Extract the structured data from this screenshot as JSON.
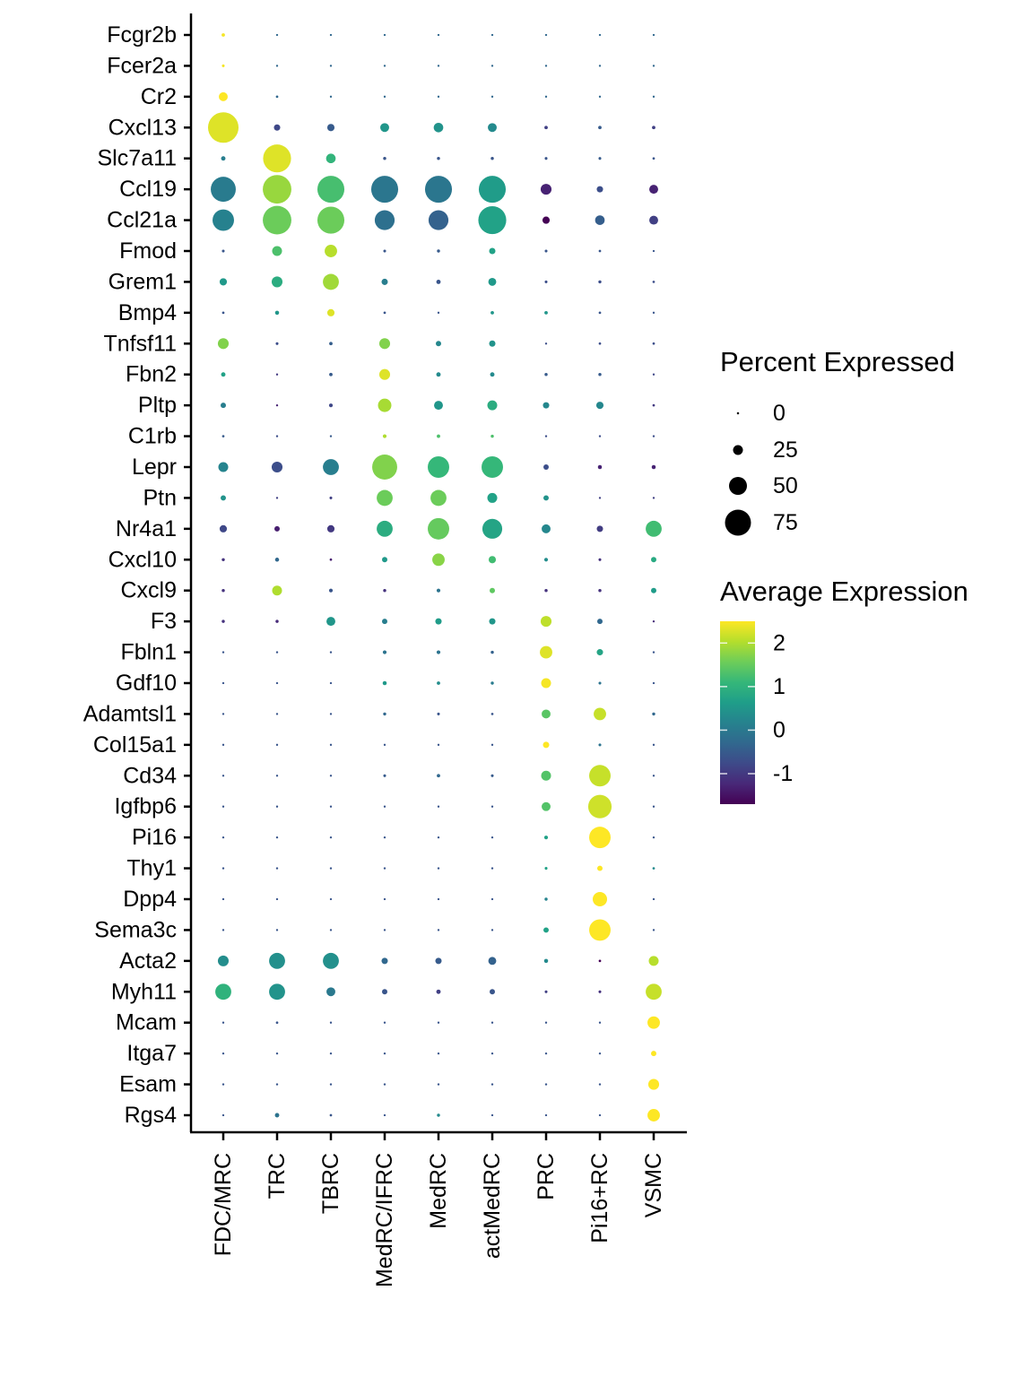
{
  "chart_data": {
    "type": "dotplot",
    "title": "",
    "xlabel": "",
    "ylabel": "",
    "categories": [
      "FDC/MRC",
      "TRC",
      "TBRC",
      "MedRC/IFRC",
      "MedRC",
      "actMedRC",
      "PRC",
      "Pi16+RC",
      "VSMC"
    ],
    "genes": [
      "Fcgr2b",
      "Fcer2a",
      "Cr2",
      "Cxcl13",
      "Slc7a11",
      "Ccl19",
      "Ccl21a",
      "Fmod",
      "Grem1",
      "Bmp4",
      "Tnfsf11",
      "Fbn2",
      "Pltp",
      "C1rb",
      "Lepr",
      "Ptn",
      "Nr4a1",
      "Cxcl10",
      "Cxcl9",
      "F3",
      "Fbln1",
      "Gdf10",
      "Adamtsl1",
      "Col15a1",
      "Cd34",
      "Igfbp6",
      "Pi16",
      "Thy1",
      "Dpp4",
      "Sema3c",
      "Acta2",
      "Myh11",
      "Mcam",
      "Itga7",
      "Esam",
      "Rgs4"
    ],
    "size_legend": {
      "title": "Percent Expressed",
      "breaks": [
        0,
        25,
        50,
        75
      ],
      "labels": [
        "0",
        "25",
        "50",
        "75"
      ]
    },
    "color_legend": {
      "title": "Average Expression",
      "breaks": [
        2,
        1,
        0,
        -1
      ],
      "labels": [
        "2",
        "1",
        "0",
        "-1"
      ],
      "range": [
        -1.7,
        2.5
      ],
      "palette": [
        "#440154",
        "#482878",
        "#3E4A89",
        "#31688E",
        "#26828E",
        "#1F9E89",
        "#35B779",
        "#6DCD59",
        "#B4DE2C",
        "#FDE725"
      ]
    },
    "series": [
      {
        "gene": "Fcgr2b",
        "pct": [
          5,
          1,
          1,
          1,
          1,
          1,
          1,
          1,
          1
        ],
        "avg_exp": [
          2.45,
          -0.3,
          -0.3,
          -0.3,
          -0.3,
          -0.3,
          -0.3,
          -0.3,
          -0.3
        ]
      },
      {
        "gene": "Fcer2a",
        "pct": [
          3,
          1,
          1,
          1,
          1,
          1,
          1,
          1,
          1
        ],
        "avg_exp": [
          2.45,
          -0.3,
          -0.3,
          -0.3,
          -0.3,
          -0.3,
          -0.3,
          -0.3,
          -0.3
        ]
      },
      {
        "gene": "Cr2",
        "pct": [
          22,
          2,
          1,
          1,
          1,
          1,
          1,
          1,
          1
        ],
        "avg_exp": [
          2.5,
          -0.3,
          -0.3,
          -0.3,
          -0.3,
          -0.3,
          -0.3,
          -0.3,
          -0.3
        ]
      },
      {
        "gene": "Cxcl13",
        "pct": [
          89,
          14,
          17,
          22,
          24,
          22,
          5,
          5,
          5
        ],
        "avg_exp": [
          2.3,
          -0.8,
          -0.5,
          0.5,
          0.45,
          0.3,
          -0.9,
          -0.5,
          -0.9
        ]
      },
      {
        "gene": "Slc7a11",
        "pct": [
          8,
          81,
          24,
          4,
          4,
          4,
          3,
          3,
          2
        ],
        "avg_exp": [
          0.1,
          2.3,
          1.05,
          -0.6,
          -0.6,
          -0.6,
          -0.6,
          -0.5,
          -0.6
        ]
      },
      {
        "gene": "Ccl19",
        "pct": [
          72,
          83,
          78,
          78,
          78,
          78,
          28,
          14,
          22
        ],
        "avg_exp": [
          0.05,
          1.85,
          1.25,
          -0.05,
          -0.05,
          0.6,
          -1.3,
          -0.7,
          -1.3
        ]
      },
      {
        "gene": "Ccl21a",
        "pct": [
          61,
          83,
          78,
          56,
          56,
          81,
          17,
          24,
          22
        ],
        "avg_exp": [
          0.15,
          1.55,
          1.55,
          -0.15,
          -0.4,
          0.7,
          -1.7,
          -0.45,
          -0.9
        ]
      },
      {
        "gene": "Fmod",
        "pct": [
          3,
          25,
          33,
          3,
          4,
          14,
          3,
          2,
          1
        ],
        "avg_exp": [
          -0.6,
          1.3,
          2.05,
          -0.6,
          -0.5,
          0.7,
          -0.6,
          -0.6,
          -0.6
        ]
      },
      {
        "gene": "Grem1",
        "pct": [
          17,
          28,
          44,
          14,
          8,
          19,
          3,
          4,
          2
        ],
        "avg_exp": [
          0.55,
          0.9,
          1.9,
          0.1,
          -0.6,
          0.55,
          -0.7,
          -0.7,
          -0.7
        ]
      },
      {
        "gene": "Bmp4",
        "pct": [
          2,
          7,
          17,
          2,
          1,
          5,
          5,
          2,
          1
        ],
        "avg_exp": [
          -0.6,
          0.5,
          2.3,
          -0.6,
          -0.6,
          0.5,
          0.5,
          -0.6,
          -0.6
        ]
      },
      {
        "gene": "Tnfsf11",
        "pct": [
          28,
          3,
          5,
          28,
          11,
          14,
          1,
          2,
          2
        ],
        "avg_exp": [
          1.7,
          -0.7,
          -0.45,
          1.7,
          0.25,
          0.45,
          -0.7,
          -0.7,
          -0.7
        ]
      },
      {
        "gene": "Fbn2",
        "pct": [
          8,
          1,
          5,
          28,
          8,
          8,
          4,
          4,
          1
        ],
        "avg_exp": [
          0.7,
          -1.0,
          -0.5,
          2.3,
          0.3,
          0.3,
          -0.5,
          -0.5,
          -0.8
        ]
      },
      {
        "gene": "Pltp",
        "pct": [
          11,
          1,
          6,
          36,
          22,
          25,
          14,
          17,
          2
        ],
        "avg_exp": [
          0.1,
          -1.3,
          -0.8,
          1.95,
          0.5,
          0.9,
          0.25,
          0.25,
          -1.0
        ]
      },
      {
        "gene": "C1rb",
        "pct": [
          2,
          1,
          1,
          6,
          5,
          4,
          1,
          1,
          1
        ],
        "avg_exp": [
          -0.5,
          -0.7,
          -0.5,
          2.0,
          1.3,
          1.3,
          -0.7,
          -0.7,
          -0.7
        ]
      },
      {
        "gene": "Lepr",
        "pct": [
          25,
          28,
          44,
          72,
          61,
          61,
          11,
          7,
          7
        ],
        "avg_exp": [
          0.2,
          -0.7,
          0.1,
          1.7,
          1.1,
          1.1,
          -0.7,
          -1.3,
          -1.3
        ]
      },
      {
        "gene": "Ptn",
        "pct": [
          11,
          1,
          3,
          44,
          44,
          25,
          11,
          1,
          1
        ],
        "avg_exp": [
          0.45,
          -0.9,
          -0.9,
          1.55,
          1.55,
          0.7,
          0.45,
          -0.9,
          -0.9
        ]
      },
      {
        "gene": "Nr4a1",
        "pct": [
          17,
          11,
          17,
          44,
          61,
          56,
          22,
          14,
          44
        ],
        "avg_exp": [
          -0.8,
          -1.35,
          -1.0,
          0.9,
          1.5,
          0.75,
          0.25,
          -0.95,
          1.2
        ]
      },
      {
        "gene": "Cxcl10",
        "pct": [
          4,
          7,
          2,
          11,
          33,
          17,
          6,
          3,
          11
        ],
        "avg_exp": [
          -1.1,
          -0.3,
          -1.35,
          0.55,
          1.75,
          1.2,
          0.35,
          -1.1,
          0.85
        ]
      },
      {
        "gene": "Cxcl9",
        "pct": [
          4,
          25,
          6,
          4,
          6,
          11,
          4,
          4,
          11
        ],
        "avg_exp": [
          -1.1,
          2.0,
          -0.6,
          -1.1,
          -0.1,
          1.45,
          -1.1,
          -1.1,
          0.6
        ]
      },
      {
        "gene": "F3",
        "pct": [
          4,
          4,
          22,
          11,
          14,
          14,
          28,
          11,
          1
        ],
        "avg_exp": [
          -1.1,
          -1.2,
          0.5,
          0.1,
          0.6,
          0.5,
          2.1,
          -0.3,
          -1.2
        ]
      },
      {
        "gene": "Fbln1",
        "pct": [
          1,
          1,
          1,
          6,
          6,
          4,
          33,
          14,
          1
        ],
        "avg_exp": [
          -0.6,
          -0.6,
          -0.6,
          -0.1,
          -0.1,
          -0.4,
          2.3,
          0.75,
          -0.6
        ]
      },
      {
        "gene": "Gdf10",
        "pct": [
          1,
          1,
          1,
          7,
          5,
          4,
          25,
          3,
          1
        ],
        "avg_exp": [
          -0.6,
          -0.6,
          -0.6,
          0.55,
          0.35,
          0.05,
          2.45,
          -0.1,
          -0.6
        ]
      },
      {
        "gene": "Adamtsl1",
        "pct": [
          1,
          1,
          1,
          4,
          3,
          2,
          22,
          33,
          4
        ],
        "avg_exp": [
          -0.6,
          -0.6,
          -0.6,
          -0.3,
          -0.6,
          -0.6,
          1.4,
          2.15,
          -0.3
        ]
      },
      {
        "gene": "Col15a1",
        "pct": [
          1,
          1,
          1,
          1,
          1,
          1,
          14,
          3,
          1
        ],
        "avg_exp": [
          -0.6,
          -0.6,
          -0.6,
          -0.6,
          -0.6,
          -0.6,
          2.5,
          -0.1,
          -0.6
        ]
      },
      {
        "gene": "Cd34",
        "pct": [
          1,
          1,
          1,
          3,
          5,
          3,
          25,
          61,
          1
        ],
        "avg_exp": [
          -0.6,
          -0.6,
          -0.6,
          -0.5,
          -0.3,
          -0.5,
          1.35,
          2.15,
          -0.6
        ]
      },
      {
        "gene": "Igfbp6",
        "pct": [
          1,
          1,
          1,
          1,
          1,
          1,
          22,
          67,
          1
        ],
        "avg_exp": [
          -0.6,
          -0.6,
          -0.6,
          -0.6,
          -0.6,
          -0.6,
          1.35,
          2.2,
          -0.6
        ]
      },
      {
        "gene": "Pi16",
        "pct": [
          1,
          1,
          1,
          1,
          1,
          1,
          6,
          61,
          1
        ],
        "avg_exp": [
          -0.6,
          -0.6,
          -0.6,
          -0.6,
          -0.6,
          -0.6,
          0.7,
          2.5,
          -0.6
        ]
      },
      {
        "gene": "Thy1",
        "pct": [
          1,
          1,
          1,
          1,
          1,
          1,
          3,
          11,
          2
        ],
        "avg_exp": [
          -0.6,
          -0.6,
          -0.6,
          -0.6,
          -0.6,
          -0.6,
          0.7,
          2.5,
          0.3
        ]
      },
      {
        "gene": "Dpp4",
        "pct": [
          1,
          1,
          1,
          1,
          1,
          1,
          4,
          39,
          1
        ],
        "avg_exp": [
          -0.6,
          -0.6,
          -0.6,
          -0.6,
          -0.6,
          -0.6,
          0.2,
          2.5,
          -0.6
        ]
      },
      {
        "gene": "Sema3c",
        "pct": [
          1,
          1,
          1,
          1,
          1,
          1,
          11,
          61,
          1
        ],
        "avg_exp": [
          -0.6,
          -0.6,
          -0.6,
          -0.6,
          -0.6,
          -0.6,
          0.7,
          2.5,
          -0.6
        ]
      },
      {
        "gene": "Acta2",
        "pct": [
          28,
          44,
          44,
          14,
          14,
          19,
          7,
          2,
          25
        ],
        "avg_exp": [
          0.35,
          0.4,
          0.4,
          -0.3,
          -0.5,
          -0.4,
          0.3,
          -1.7,
          2.05
        ]
      },
      {
        "gene": "Myh11",
        "pct": [
          44,
          44,
          22,
          11,
          8,
          11,
          3,
          3,
          44
        ],
        "avg_exp": [
          1.0,
          0.45,
          0.0,
          -0.6,
          -0.9,
          -0.6,
          -0.9,
          -1.1,
          2.15
        ]
      },
      {
        "gene": "Mcam",
        "pct": [
          1,
          2,
          1,
          1,
          1,
          1,
          1,
          1,
          33
        ],
        "avg_exp": [
          -0.6,
          -0.6,
          -0.6,
          -0.6,
          -0.6,
          -0.6,
          -0.6,
          -0.6,
          2.5
        ]
      },
      {
        "gene": "Itga7",
        "pct": [
          1,
          1,
          1,
          1,
          1,
          1,
          1,
          1,
          11
        ],
        "avg_exp": [
          -0.6,
          -0.6,
          -0.6,
          -0.6,
          -0.6,
          -0.6,
          -0.6,
          -0.6,
          2.5
        ]
      },
      {
        "gene": "Esam",
        "pct": [
          1,
          1,
          1,
          1,
          1,
          1,
          1,
          1,
          28
        ],
        "avg_exp": [
          -0.6,
          -0.6,
          -0.6,
          -0.6,
          -0.6,
          -0.6,
          -0.6,
          -0.6,
          2.5
        ]
      },
      {
        "gene": "Rgs4",
        "pct": [
          1,
          8,
          2,
          1,
          4,
          1,
          1,
          1,
          33
        ],
        "avg_exp": [
          -0.6,
          -0.1,
          -0.6,
          -0.6,
          0.3,
          -0.6,
          -0.6,
          -0.6,
          2.5
        ]
      }
    ]
  }
}
